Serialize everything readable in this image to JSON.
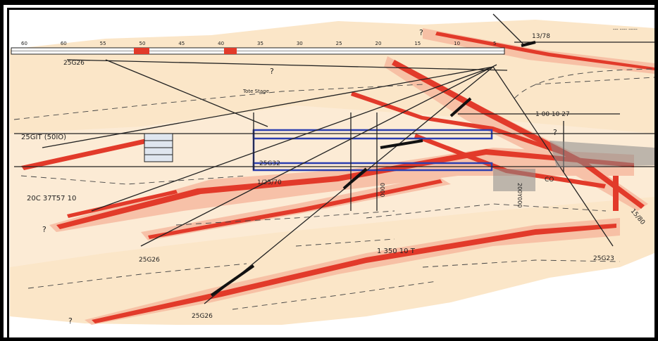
{
  "labels": {
    "borehole_top_left": "25G26",
    "borehole_mid": "25G32",
    "borehole_bottom_left": "25G26",
    "borehole_bottom_center": "25G26",
    "borehole_right": "25G23",
    "label_left_top": "25GIT (50IO)",
    "label_left_bottom": "20C 37T57 10",
    "label_mid_angle": "1/25/70",
    "label_bottom_mid": "1 350 10 T",
    "label_right_top": "13/78",
    "label_center_top": "Tote Stage",
    "label_right_mid": "1 00 10 27",
    "label_right_co": "CO",
    "label_right_edge": "15/80",
    "label_top_right_text": "--- ---- -----",
    "label_vertical_1": "0000",
    "label_vertical_2": "200Y000",
    "qmark_1": "?",
    "qmark_2": "?",
    "qmark_3": "?",
    "qmark_4": "?",
    "qmark_5": "?"
  },
  "scale": {
    "ticks": [
      "60",
      "60",
      "55",
      "50",
      "45",
      "40",
      "35",
      "30",
      "25",
      "20",
      "15",
      "10",
      "5"
    ]
  },
  "colors": {
    "background_fill": "#fbe9d0",
    "fault_band": "#e23a2a",
    "fault_halo": "#f6b49a",
    "blue_box": "#2c3fb0",
    "line": "#222222"
  }
}
